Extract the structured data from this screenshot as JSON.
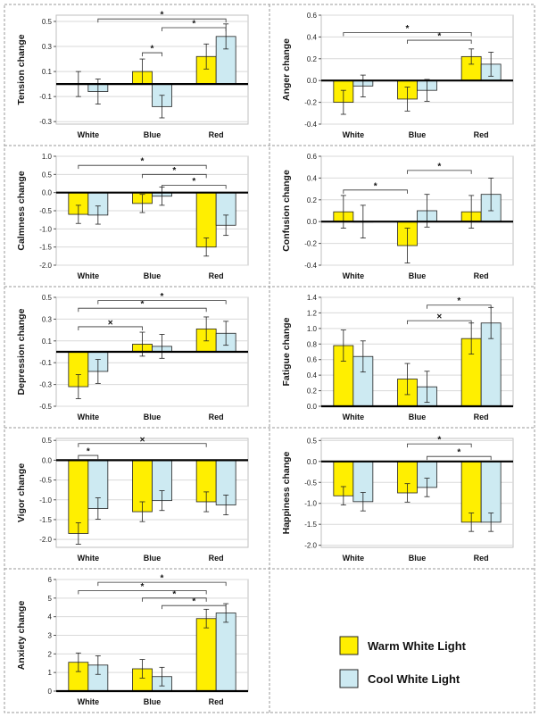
{
  "colors": {
    "warm": "#ffef00",
    "cool": "#cdeaf2",
    "grid": "#d9d9d9",
    "border": "#9a9a9a"
  },
  "legend": {
    "items": [
      {
        "label": "Warm White Light",
        "color": "#ffef00"
      },
      {
        "label": "Cool White Light",
        "color": "#cdeaf2"
      }
    ]
  },
  "chart_data": [
    {
      "type": "bar",
      "categories": [
        "White",
        "Blue",
        "Red"
      ],
      "ylabel": "Tension change",
      "yticks": [
        -0.3,
        -0.1,
        0.1,
        0.3,
        0.5
      ],
      "ylim": [
        -0.32,
        0.55
      ],
      "grid": true,
      "series": [
        {
          "name": "Warm White Light",
          "values": [
            0.0,
            0.1,
            0.22
          ],
          "err": [
            0.1,
            0.1,
            0.1
          ]
        },
        {
          "name": "Cool White Light",
          "values": [
            -0.06,
            -0.18,
            0.38
          ],
          "err": [
            0.1,
            0.09,
            0.1
          ]
        }
      ],
      "brackets": [
        {
          "from": [
            1,
            0
          ],
          "to": [
            1,
            1
          ],
          "y": 0.25,
          "symbol": "*"
        },
        {
          "from": [
            1,
            1
          ],
          "to": [
            2,
            1
          ],
          "y": 0.45,
          "symbol": "*"
        },
        {
          "from": [
            0,
            1
          ],
          "to": [
            2,
            1
          ],
          "y": 0.52,
          "symbol": "*"
        }
      ]
    },
    {
      "type": "bar",
      "categories": [
        "White",
        "Blue",
        "Red"
      ],
      "ylabel": "Anger change",
      "yticks": [
        -0.4,
        -0.2,
        0.0,
        0.2,
        0.4,
        0.6
      ],
      "ylim": [
        -0.4,
        0.6
      ],
      "grid": true,
      "series": [
        {
          "name": "Warm White Light",
          "values": [
            -0.2,
            -0.17,
            0.22
          ],
          "err": [
            0.11,
            0.11,
            0.07
          ]
        },
        {
          "name": "Cool White Light",
          "values": [
            -0.05,
            -0.09,
            0.15
          ],
          "err": [
            0.1,
            0.1,
            0.11
          ]
        }
      ],
      "brackets": [
        {
          "from": [
            1,
            0
          ],
          "to": [
            2,
            0
          ],
          "y": 0.37,
          "symbol": "*"
        },
        {
          "from": [
            0,
            0
          ],
          "to": [
            2,
            0
          ],
          "y": 0.44,
          "symbol": "*"
        }
      ]
    },
    {
      "type": "bar",
      "categories": [
        "White",
        "Blue",
        "Red"
      ],
      "ylabel": "Calmness change",
      "yticks": [
        -2.0,
        -1.5,
        -1.0,
        -0.5,
        0.0,
        0.5,
        1.0
      ],
      "ylim": [
        -2.0,
        1.0
      ],
      "grid": true,
      "series": [
        {
          "name": "Warm White Light",
          "values": [
            -0.6,
            -0.3,
            -1.5
          ],
          "err": [
            0.25,
            0.25,
            0.25
          ]
        },
        {
          "name": "Cool White Light",
          "values": [
            -0.62,
            -0.1,
            -0.9
          ],
          "err": [
            0.25,
            0.25,
            0.28
          ]
        }
      ],
      "brackets": [
        {
          "from": [
            1,
            1
          ],
          "to": [
            2,
            1
          ],
          "y": 0.2,
          "symbol": "*"
        },
        {
          "from": [
            1,
            0
          ],
          "to": [
            2,
            0
          ],
          "y": 0.5,
          "symbol": "*"
        },
        {
          "from": [
            0,
            0
          ],
          "to": [
            2,
            0
          ],
          "y": 0.75,
          "symbol": "*"
        }
      ]
    },
    {
      "type": "bar",
      "categories": [
        "White",
        "Blue",
        "Red"
      ],
      "ylabel": "Confusion change",
      "yticks": [
        -0.4,
        -0.2,
        0.0,
        0.2,
        0.4,
        0.6
      ],
      "ylim": [
        -0.4,
        0.6
      ],
      "grid": true,
      "series": [
        {
          "name": "Warm White Light",
          "values": [
            0.09,
            -0.22,
            0.09
          ],
          "err": [
            0.15,
            0.16,
            0.15
          ]
        },
        {
          "name": "Cool White Light",
          "values": [
            0.0,
            0.1,
            0.25
          ],
          "err": [
            0.15,
            0.15,
            0.15
          ]
        }
      ],
      "brackets": [
        {
          "from": [
            0,
            0
          ],
          "to": [
            1,
            0
          ],
          "y": 0.29,
          "symbol": "*"
        },
        {
          "from": [
            1,
            0
          ],
          "to": [
            2,
            0
          ],
          "y": 0.47,
          "symbol": "*"
        }
      ]
    },
    {
      "type": "bar",
      "categories": [
        "White",
        "Blue",
        "Red"
      ],
      "ylabel": "Depression change",
      "yticks": [
        -0.5,
        -0.3,
        -0.1,
        0.1,
        0.3,
        0.5
      ],
      "ylim": [
        -0.5,
        0.5
      ],
      "grid": true,
      "series": [
        {
          "name": "Warm White Light",
          "values": [
            -0.32,
            0.07,
            0.21
          ],
          "err": [
            0.11,
            0.11,
            0.11
          ]
        },
        {
          "name": "Cool White Light",
          "values": [
            -0.18,
            0.05,
            0.17
          ],
          "err": [
            0.11,
            0.11,
            0.11
          ]
        }
      ],
      "brackets": [
        {
          "from": [
            0,
            0
          ],
          "to": [
            1,
            0
          ],
          "y": 0.23,
          "symbol": "×"
        },
        {
          "from": [
            0,
            0
          ],
          "to": [
            2,
            0
          ],
          "y": 0.4,
          "symbol": "*"
        },
        {
          "from": [
            0,
            1
          ],
          "to": [
            2,
            1
          ],
          "y": 0.47,
          "symbol": "*"
        }
      ]
    },
    {
      "type": "bar",
      "categories": [
        "White",
        "Blue",
        "Red"
      ],
      "ylabel": "Fatigue change",
      "yticks": [
        0.0,
        0.2,
        0.4,
        0.6,
        0.8,
        1.0,
        1.2,
        1.4
      ],
      "ylim": [
        0.0,
        1.4
      ],
      "grid": true,
      "series": [
        {
          "name": "Warm White Light",
          "values": [
            0.78,
            0.35,
            0.87
          ],
          "err": [
            0.2,
            0.2,
            0.2
          ]
        },
        {
          "name": "Cool White Light",
          "values": [
            0.64,
            0.25,
            1.07
          ],
          "err": [
            0.2,
            0.2,
            0.2
          ]
        }
      ],
      "brackets": [
        {
          "from": [
            1,
            0
          ],
          "to": [
            2,
            0
          ],
          "y": 1.1,
          "symbol": "×"
        },
        {
          "from": [
            1,
            1
          ],
          "to": [
            2,
            1
          ],
          "y": 1.3,
          "symbol": "*"
        }
      ]
    },
    {
      "type": "bar",
      "categories": [
        "White",
        "Blue",
        "Red"
      ],
      "ylabel": "Vigor change",
      "yticks": [
        -2.0,
        -1.5,
        -1.0,
        -0.5,
        0.0,
        0.5
      ],
      "ylim": [
        -2.2,
        0.55
      ],
      "grid": true,
      "series": [
        {
          "name": "Warm White Light",
          "values": [
            -1.85,
            -1.3,
            -1.05
          ],
          "err": [
            0.27,
            0.25,
            0.25
          ]
        },
        {
          "name": "Cool White Light",
          "values": [
            -1.22,
            -1.02,
            -1.13
          ],
          "err": [
            0.27,
            0.25,
            0.25
          ]
        }
      ],
      "brackets": [
        {
          "from": [
            0,
            0
          ],
          "to": [
            0,
            1
          ],
          "y": 0.12,
          "symbol": "*"
        },
        {
          "from": [
            0,
            0
          ],
          "to": [
            2,
            0
          ],
          "y": 0.42,
          "symbol": "×"
        }
      ]
    },
    {
      "type": "bar",
      "categories": [
        "White",
        "Blue",
        "Red"
      ],
      "ylabel": "Happiness change",
      "yticks": [
        -2.0,
        -1.5,
        -1.0,
        -0.5,
        0.0,
        0.5
      ],
      "ylim": [
        -2.05,
        0.55
      ],
      "grid": true,
      "series": [
        {
          "name": "Warm White Light",
          "values": [
            -0.82,
            -0.75,
            -1.45
          ],
          "err": [
            0.22,
            0.22,
            0.22
          ]
        },
        {
          "name": "Cool White Light",
          "values": [
            -0.96,
            -0.62,
            -1.45
          ],
          "err": [
            0.22,
            0.22,
            0.22
          ]
        }
      ],
      "brackets": [
        {
          "from": [
            1,
            1
          ],
          "to": [
            2,
            1
          ],
          "y": 0.12,
          "symbol": "*"
        },
        {
          "from": [
            1,
            0
          ],
          "to": [
            2,
            0
          ],
          "y": 0.42,
          "symbol": "*"
        }
      ]
    },
    {
      "type": "bar",
      "categories": [
        "White",
        "Blue",
        "Red"
      ],
      "ylabel": "Anxiety change",
      "yticks": [
        0,
        1,
        2,
        3,
        4,
        5,
        6
      ],
      "ylim": [
        0,
        6.0
      ],
      "grid": true,
      "series": [
        {
          "name": "Warm White Light",
          "values": [
            1.55,
            1.2,
            3.9
          ],
          "err": [
            0.5,
            0.5,
            0.5
          ]
        },
        {
          "name": "Cool White Light",
          "values": [
            1.4,
            0.78,
            4.2
          ],
          "err": [
            0.5,
            0.5,
            0.5
          ]
        }
      ],
      "brackets": [
        {
          "from": [
            1,
            1
          ],
          "to": [
            2,
            1
          ],
          "y": 4.6,
          "symbol": "*"
        },
        {
          "from": [
            1,
            0
          ],
          "to": [
            2,
            0
          ],
          "y": 5.0,
          "symbol": "*"
        },
        {
          "from": [
            0,
            0
          ],
          "to": [
            2,
            0
          ],
          "y": 5.4,
          "symbol": "*"
        },
        {
          "from": [
            0,
            1
          ],
          "to": [
            2,
            1
          ],
          "y": 5.85,
          "symbol": "*"
        }
      ]
    }
  ]
}
